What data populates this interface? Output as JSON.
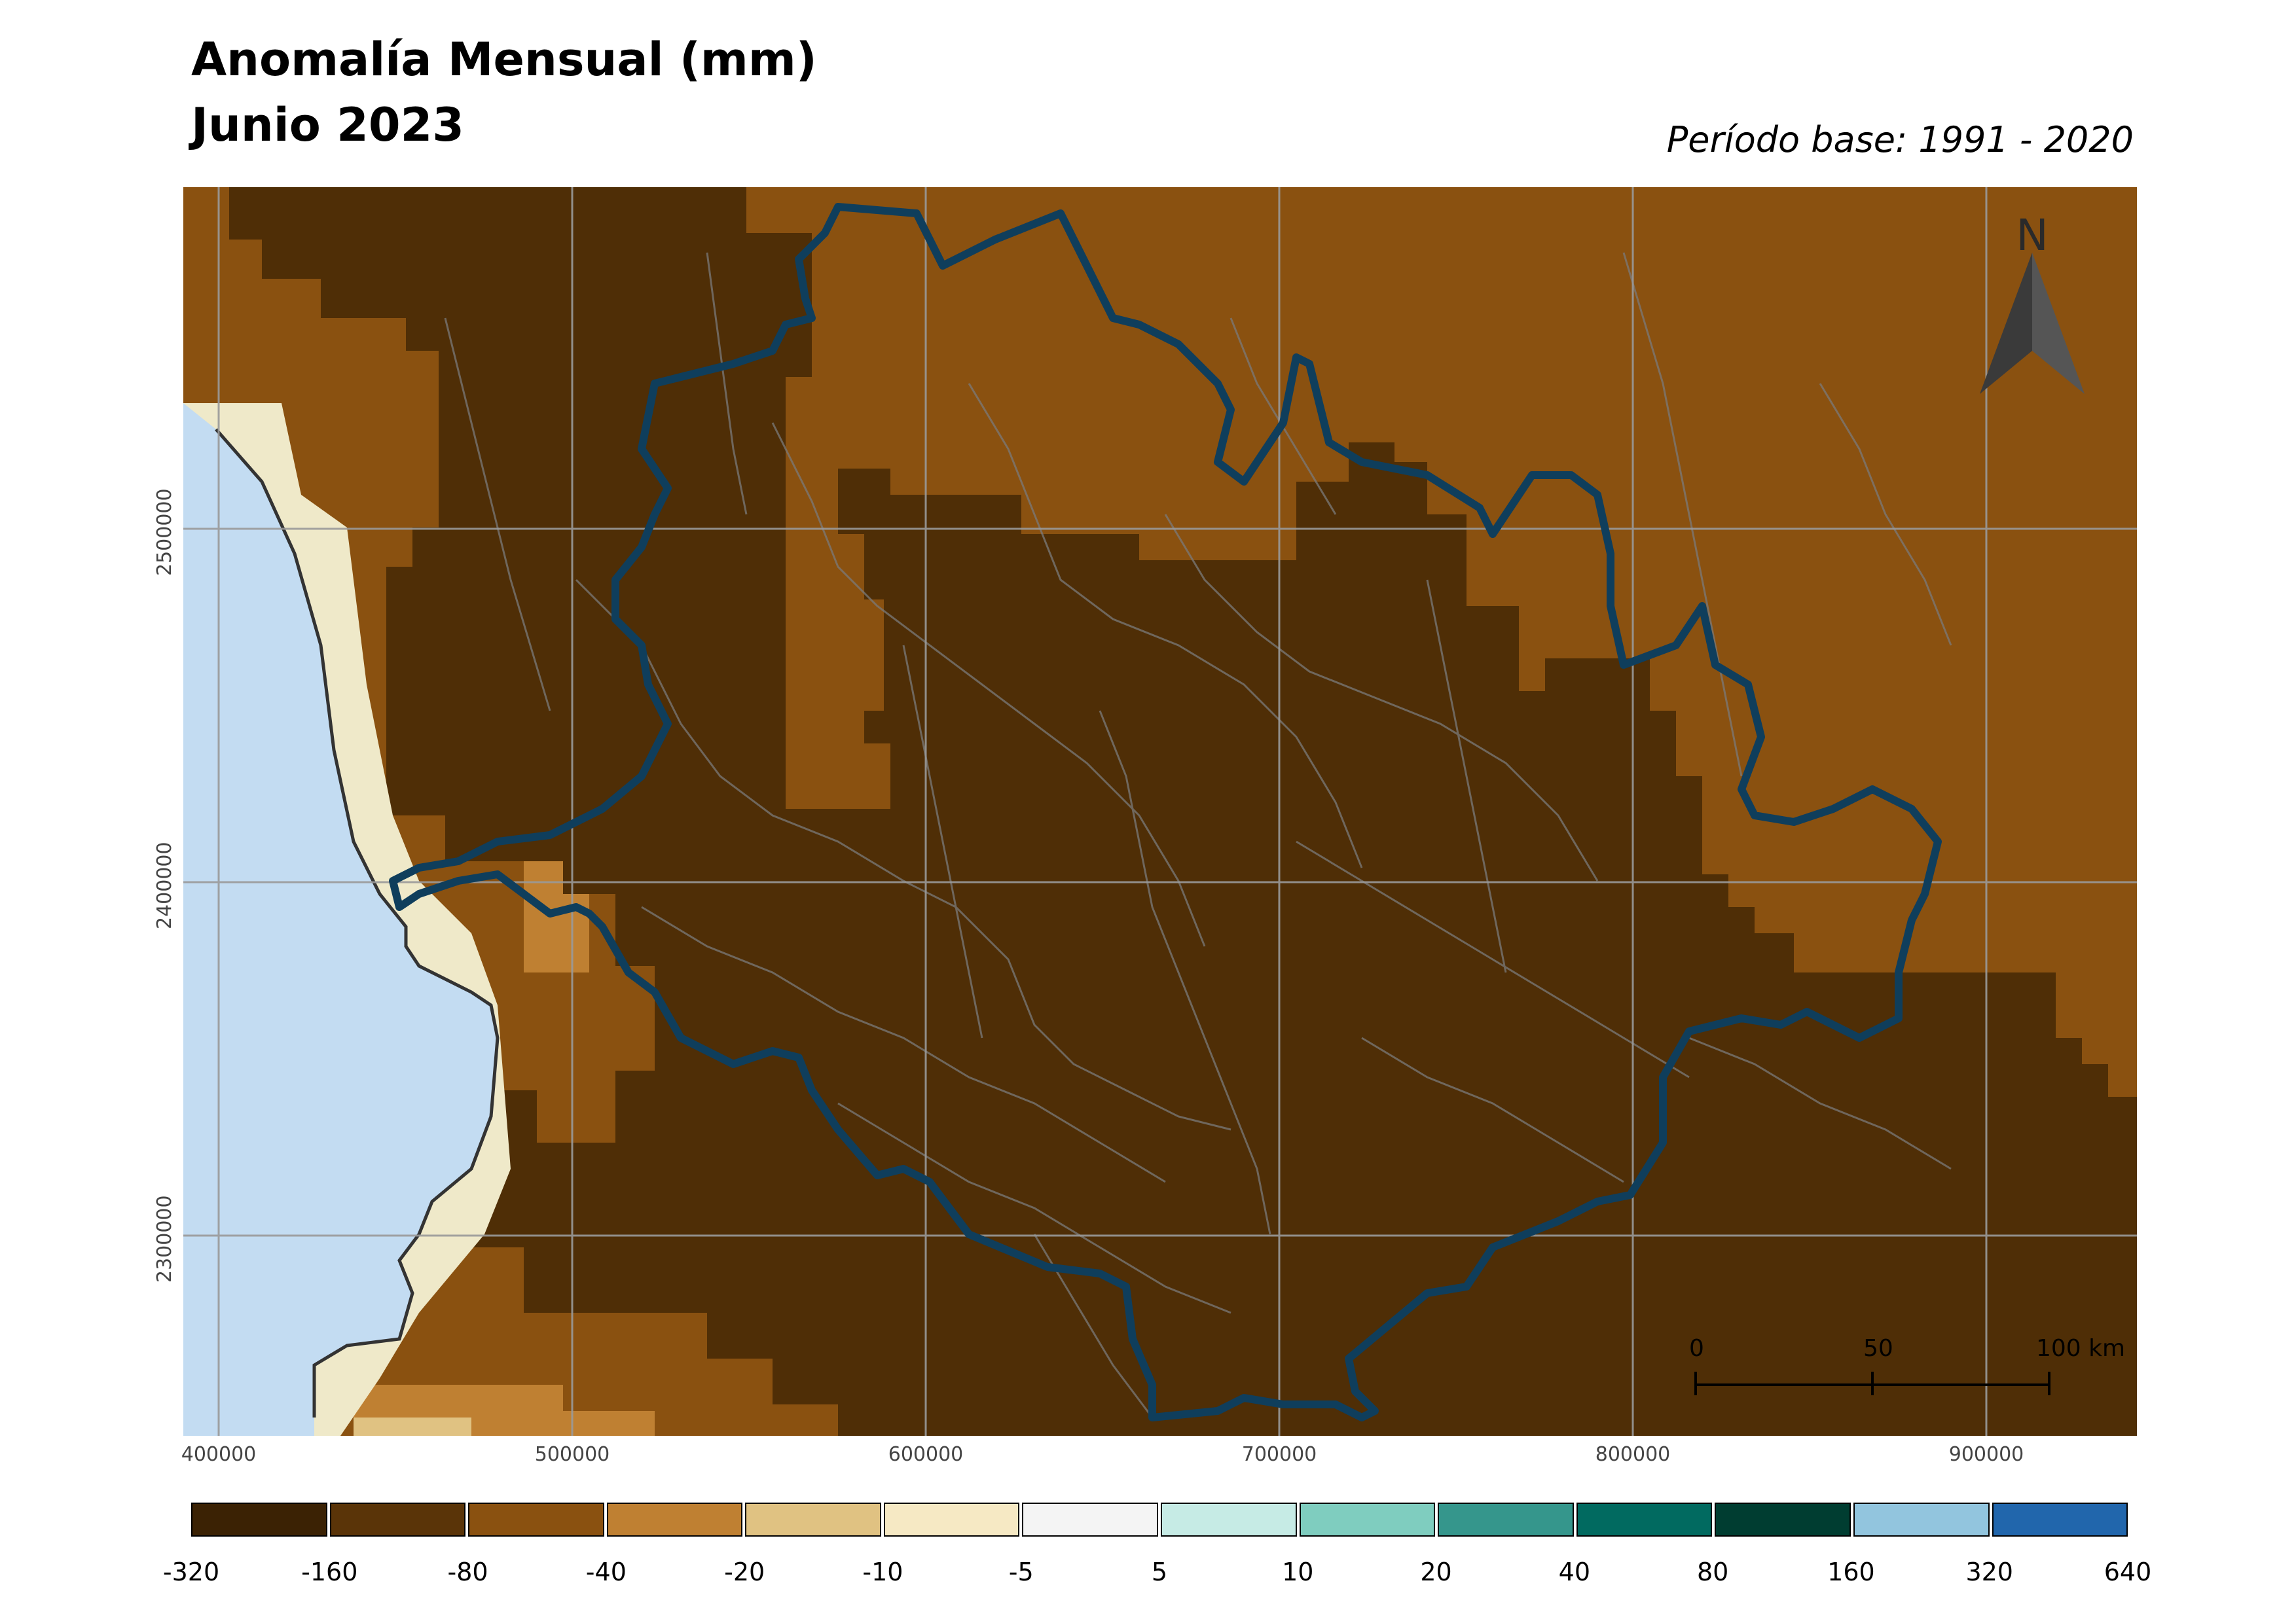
{
  "title": "Anomalía Mensual (mm)",
  "subtitle": "Junio 2023",
  "period": "Período base: 1991 - 2020",
  "north": "N",
  "axes": {
    "y_ticks": [
      "2500000",
      "2400000",
      "2300000"
    ],
    "x_ticks": [
      "400000",
      "500000",
      "600000",
      "700000",
      "800000",
      "900000"
    ]
  },
  "scale_bar": {
    "labels": [
      "0",
      "50",
      "100 km"
    ]
  },
  "legend": {
    "colors": [
      "#3b2204",
      "#5a3408",
      "#8a5110",
      "#bf8032",
      "#e0c282",
      "#f6e9c4",
      "#f4f4f4",
      "#c6ebe5",
      "#7fcdbf",
      "#35968c",
      "#016a60",
      "#003d31",
      "#92c5de",
      "#2166ac"
    ],
    "labels": [
      "-320",
      "-160",
      "-80",
      "-40",
      "-20",
      "-10",
      "-5",
      "5",
      "10",
      "20",
      "40",
      "80",
      "160",
      "320",
      "640"
    ]
  },
  "colors": {
    "very_dry": "#4f2e06",
    "dry": "#8a5110",
    "moderate": "#bf8032",
    "light": "#e0c282",
    "sea": "#c3dcf2",
    "boundary": "#0f3e5c",
    "grid": "#9a9a9a"
  }
}
